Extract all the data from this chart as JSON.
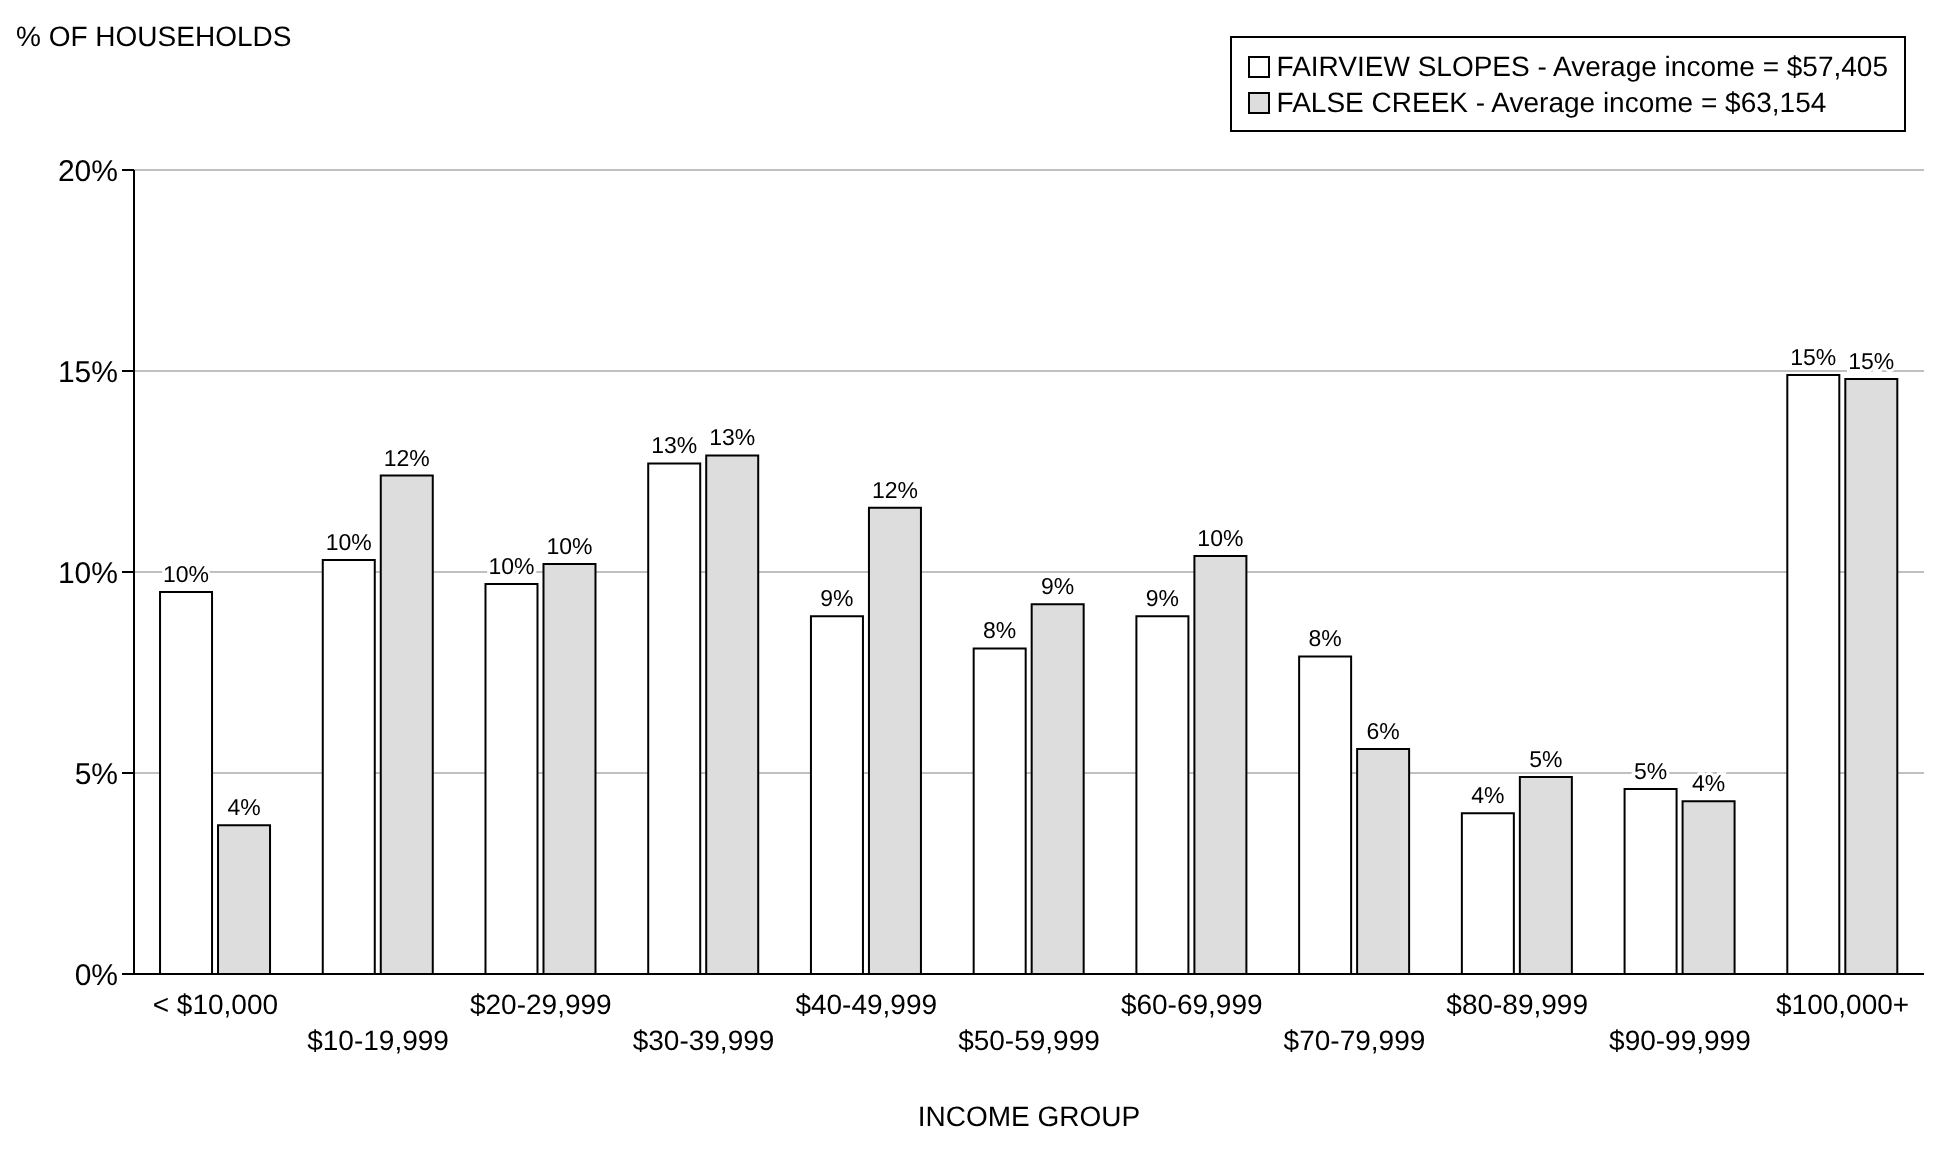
{
  "chart_data": {
    "type": "bar",
    "ylabel": "% OF HOUSEHOLDS",
    "xlabel": "INCOME GROUP",
    "categories": [
      "< $10,000",
      "$10-19,999",
      "$20-29,999",
      "$30-39,999",
      "$40-49,999",
      "$50-59,999",
      "$60-69,999",
      "$70-79,999",
      "$80-89,999",
      "$90-99,999",
      "$100,000+"
    ],
    "series": [
      {
        "name": "FAIRVIEW SLOPES - Average income = $57,405",
        "color": "#ffffff",
        "values": [
          9.5,
          10.3,
          9.7,
          12.7,
          8.9,
          8.1,
          8.9,
          7.9,
          4.0,
          4.6,
          14.9
        ],
        "value_labels": [
          "10%",
          "10%",
          "10%",
          "13%",
          "9%",
          "8%",
          "9%",
          "8%",
          "4%",
          "5%",
          "15%"
        ]
      },
      {
        "name": "FALSE CREEK - Average income = $63,154",
        "color": "#dddddd",
        "values": [
          3.7,
          12.4,
          10.2,
          12.9,
          11.6,
          9.2,
          10.4,
          5.6,
          4.9,
          4.3,
          14.8
        ],
        "value_labels": [
          "4%",
          "12%",
          "10%",
          "13%",
          "12%",
          "9%",
          "10%",
          "6%",
          "5%",
          "4%",
          "15%"
        ]
      }
    ],
    "ylim": [
      0,
      20
    ],
    "yticks": [
      {
        "value": 0,
        "label": "0%"
      },
      {
        "value": 5,
        "label": "5%"
      },
      {
        "value": 10,
        "label": "10%"
      },
      {
        "value": 15,
        "label": "15%"
      },
      {
        "value": 20,
        "label": "20%"
      }
    ],
    "grid": "y",
    "legend": "top right"
  }
}
